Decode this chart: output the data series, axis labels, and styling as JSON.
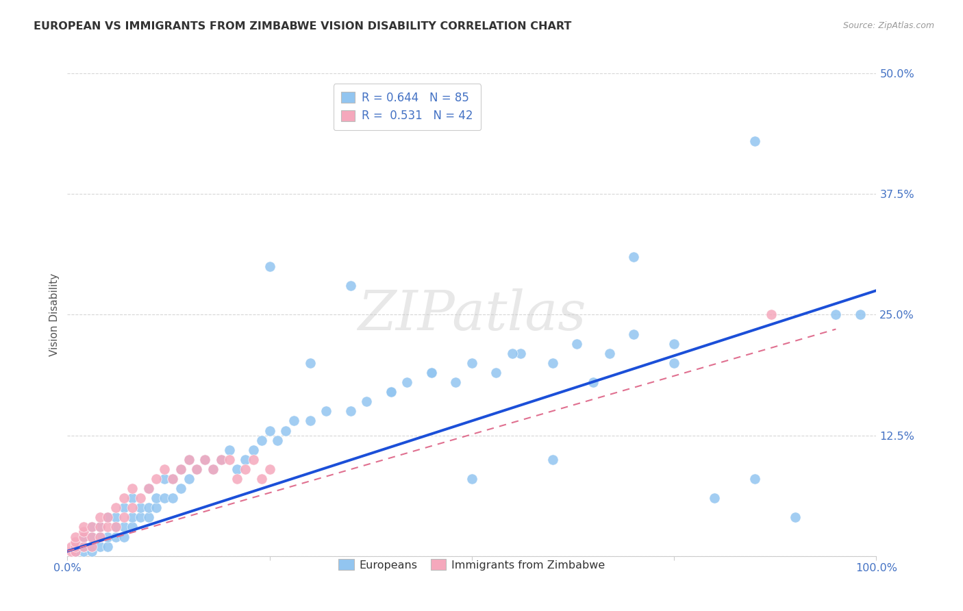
{
  "title": "EUROPEAN VS IMMIGRANTS FROM ZIMBABWE VISION DISABILITY CORRELATION CHART",
  "source": "Source: ZipAtlas.com",
  "ylabel": "Vision Disability",
  "xlim": [
    0,
    1.0
  ],
  "ylim": [
    0,
    0.5
  ],
  "yticks": [
    0.0,
    0.125,
    0.25,
    0.375,
    0.5
  ],
  "ytick_labels": [
    "",
    "12.5%",
    "25.0%",
    "37.5%",
    "50.0%"
  ],
  "xticks": [
    0.0,
    0.25,
    0.5,
    0.75,
    1.0
  ],
  "xtick_labels": [
    "0.0%",
    "",
    "",
    "",
    "100.0%"
  ],
  "blue_color": "#92C5F0",
  "pink_color": "#F5A8BC",
  "line_blue": "#1B4FD8",
  "line_pink": "#E07090",
  "watermark": "ZIPatlas",
  "blue_line_x": [
    0.0,
    1.0
  ],
  "blue_line_y": [
    0.005,
    0.275
  ],
  "pink_line_x": [
    0.0,
    0.95
  ],
  "pink_line_y": [
    0.005,
    0.235
  ],
  "blue_scatter_x": [
    0.01,
    0.01,
    0.02,
    0.02,
    0.02,
    0.03,
    0.03,
    0.03,
    0.03,
    0.04,
    0.04,
    0.04,
    0.05,
    0.05,
    0.05,
    0.06,
    0.06,
    0.06,
    0.07,
    0.07,
    0.07,
    0.08,
    0.08,
    0.08,
    0.09,
    0.09,
    0.1,
    0.1,
    0.1,
    0.11,
    0.11,
    0.12,
    0.12,
    0.13,
    0.13,
    0.14,
    0.14,
    0.15,
    0.15,
    0.16,
    0.17,
    0.18,
    0.19,
    0.2,
    0.21,
    0.22,
    0.23,
    0.24,
    0.25,
    0.26,
    0.27,
    0.28,
    0.3,
    0.32,
    0.35,
    0.37,
    0.4,
    0.42,
    0.45,
    0.48,
    0.5,
    0.53,
    0.56,
    0.6,
    0.63,
    0.67,
    0.7,
    0.75,
    0.8,
    0.85,
    0.9,
    0.95,
    0.98,
    0.3,
    0.45,
    0.55,
    0.65,
    0.75,
    0.5,
    0.6,
    0.25,
    0.35,
    0.4,
    0.7,
    0.85
  ],
  "blue_scatter_y": [
    0.005,
    0.01,
    0.005,
    0.01,
    0.02,
    0.005,
    0.01,
    0.02,
    0.03,
    0.01,
    0.02,
    0.03,
    0.01,
    0.02,
    0.04,
    0.02,
    0.03,
    0.04,
    0.02,
    0.03,
    0.05,
    0.03,
    0.04,
    0.06,
    0.04,
    0.05,
    0.04,
    0.05,
    0.07,
    0.05,
    0.06,
    0.06,
    0.08,
    0.06,
    0.08,
    0.07,
    0.09,
    0.08,
    0.1,
    0.09,
    0.1,
    0.09,
    0.1,
    0.11,
    0.09,
    0.1,
    0.11,
    0.12,
    0.13,
    0.12,
    0.13,
    0.14,
    0.14,
    0.15,
    0.15,
    0.16,
    0.17,
    0.18,
    0.19,
    0.18,
    0.2,
    0.19,
    0.21,
    0.2,
    0.22,
    0.21,
    0.23,
    0.22,
    0.06,
    0.08,
    0.04,
    0.25,
    0.25,
    0.2,
    0.19,
    0.21,
    0.18,
    0.2,
    0.08,
    0.1,
    0.3,
    0.28,
    0.17,
    0.31,
    0.43
  ],
  "pink_scatter_x": [
    0.005,
    0.005,
    0.01,
    0.01,
    0.01,
    0.01,
    0.02,
    0.02,
    0.02,
    0.02,
    0.03,
    0.03,
    0.03,
    0.04,
    0.04,
    0.04,
    0.05,
    0.05,
    0.06,
    0.06,
    0.07,
    0.07,
    0.08,
    0.08,
    0.09,
    0.1,
    0.11,
    0.12,
    0.13,
    0.14,
    0.15,
    0.16,
    0.17,
    0.18,
    0.19,
    0.2,
    0.21,
    0.22,
    0.23,
    0.24,
    0.25,
    0.87
  ],
  "pink_scatter_y": [
    0.005,
    0.01,
    0.005,
    0.01,
    0.015,
    0.02,
    0.01,
    0.02,
    0.025,
    0.03,
    0.01,
    0.02,
    0.03,
    0.02,
    0.03,
    0.04,
    0.03,
    0.04,
    0.03,
    0.05,
    0.04,
    0.06,
    0.05,
    0.07,
    0.06,
    0.07,
    0.08,
    0.09,
    0.08,
    0.09,
    0.1,
    0.09,
    0.1,
    0.09,
    0.1,
    0.1,
    0.08,
    0.09,
    0.1,
    0.08,
    0.09,
    0.25
  ]
}
